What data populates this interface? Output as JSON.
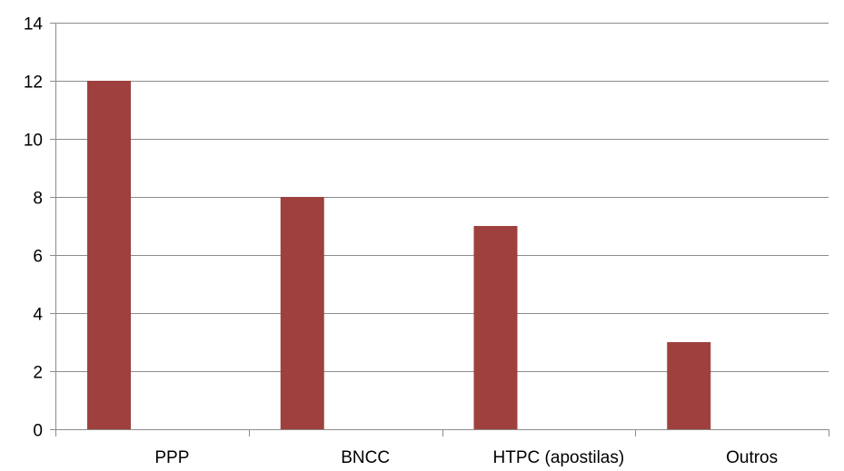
{
  "chart_data": {
    "type": "bar",
    "title": "",
    "xlabel": "",
    "ylabel": "",
    "categories": [
      "PPP",
      "BNCC",
      "HTPC (apostilas)",
      "Outros"
    ],
    "series": [
      {
        "values": [
          12,
          8,
          7,
          3
        ],
        "color": "#9e413e"
      }
    ],
    "ylim": [
      0,
      14
    ],
    "yticks": [
      0,
      2,
      4,
      6,
      8,
      10,
      12,
      14
    ],
    "grid": true,
    "legend": "none"
  }
}
